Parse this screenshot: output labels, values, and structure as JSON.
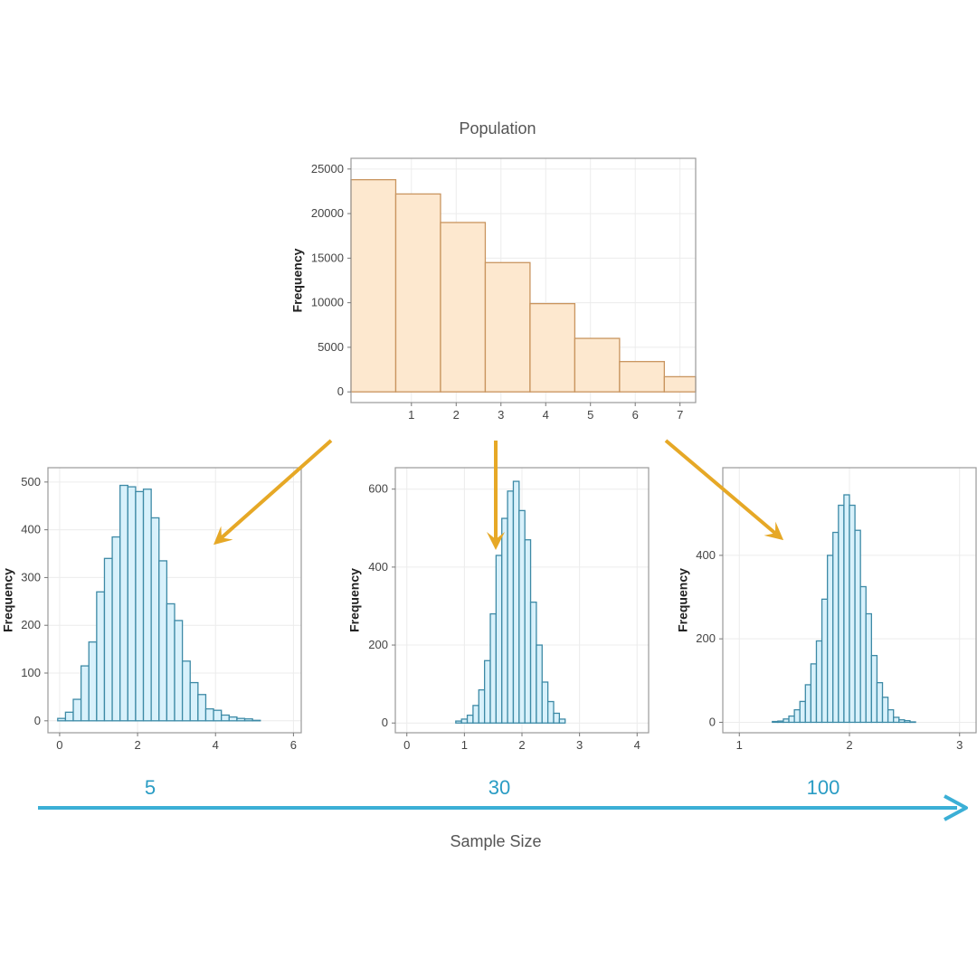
{
  "title": "Population",
  "axis_title": "Sample Size",
  "sample_sizes": [
    "5",
    "30",
    "100"
  ],
  "colors": {
    "population_fill": "#fde8cf",
    "population_stroke": "#c9955f",
    "sample_fill": "#d8f1fb",
    "sample_stroke": "#3d8aa6",
    "arrow_orange": "#e6a826",
    "arrow_blue": "#3bafd6",
    "grid": "#ececec",
    "panel_border": "#9a9a9a"
  },
  "chart_data": [
    {
      "id": "population",
      "type": "bar",
      "title": "Population",
      "ylabel": "Frequency",
      "xlim": [
        -0.35,
        7.35
      ],
      "ylim": [
        -1200,
        26200
      ],
      "xticks": [
        1,
        2,
        3,
        4,
        5,
        6,
        7
      ],
      "yticks": [
        0,
        5000,
        10000,
        15000,
        20000,
        25000
      ],
      "bin_start": -0.35,
      "bin_width": 1.0,
      "values": [
        23800,
        22200,
        19000,
        14500,
        9900,
        6000,
        3400,
        1700
      ]
    },
    {
      "id": "sample-5",
      "type": "bar",
      "sample_size": "5",
      "ylabel": "Frequency",
      "xlim": [
        -0.3,
        6.2
      ],
      "ylim": [
        -25,
        530
      ],
      "xticks": [
        0,
        2,
        4,
        6
      ],
      "yticks": [
        0,
        100,
        200,
        300,
        400,
        500
      ],
      "bin_start": -0.05,
      "bin_width": 0.2,
      "values": [
        5,
        18,
        45,
        115,
        165,
        270,
        340,
        385,
        493,
        490,
        480,
        485,
        425,
        335,
        245,
        210,
        125,
        80,
        55,
        25,
        22,
        12,
        8,
        5,
        4,
        1
      ]
    },
    {
      "id": "sample-30",
      "type": "bar",
      "sample_size": "30",
      "ylabel": "Frequency",
      "xlim": [
        -0.2,
        4.2
      ],
      "ylim": [
        -25,
        655
      ],
      "xticks": [
        0,
        1,
        2,
        3,
        4
      ],
      "yticks": [
        0,
        200,
        400,
        600
      ],
      "bin_start": 0.85,
      "bin_width": 0.1,
      "values": [
        5,
        10,
        20,
        45,
        85,
        160,
        280,
        430,
        525,
        595,
        620,
        545,
        470,
        310,
        200,
        105,
        55,
        25,
        10
      ]
    },
    {
      "id": "sample-100",
      "type": "bar",
      "sample_size": "100",
      "ylabel": "Frequency",
      "xlim": [
        0.85,
        3.15
      ],
      "ylim": [
        -25,
        610
      ],
      "xticks": [
        1,
        2,
        3
      ],
      "yticks": [
        0,
        200,
        400
      ],
      "bin_start": 1.3,
      "bin_width": 0.05,
      "values": [
        2,
        3,
        8,
        15,
        30,
        50,
        90,
        140,
        195,
        295,
        400,
        455,
        520,
        545,
        520,
        460,
        325,
        260,
        160,
        95,
        60,
        30,
        12,
        6,
        4,
        1
      ]
    }
  ]
}
